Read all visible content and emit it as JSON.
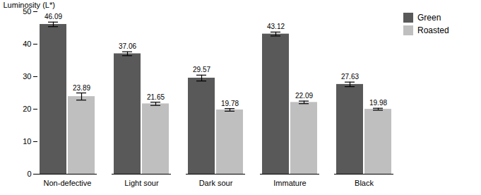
{
  "chart_data": {
    "type": "bar",
    "categories": [
      "Non-defective",
      "Light sour",
      "Dark sour",
      "Immature",
      "Black"
    ],
    "series": [
      {
        "name": "Green",
        "color": "#595959",
        "values": [
          46.09,
          37.06,
          29.57,
          43.12,
          27.63
        ],
        "errors": [
          0.7,
          0.6,
          0.9,
          0.6,
          0.7
        ]
      },
      {
        "name": "Roasted",
        "color": "#bfbfbf",
        "values": [
          23.89,
          21.65,
          19.78,
          22.09,
          19.98
        ],
        "errors": [
          1.1,
          0.5,
          0.4,
          0.4,
          0.3
        ]
      }
    ],
    "ylabel": "Luminosity (L*)",
    "ylim": [
      0,
      50
    ],
    "yticks": [
      0,
      10,
      20,
      30,
      40,
      50
    ],
    "legend": "upper right",
    "data_labels": true,
    "grid": false
  }
}
